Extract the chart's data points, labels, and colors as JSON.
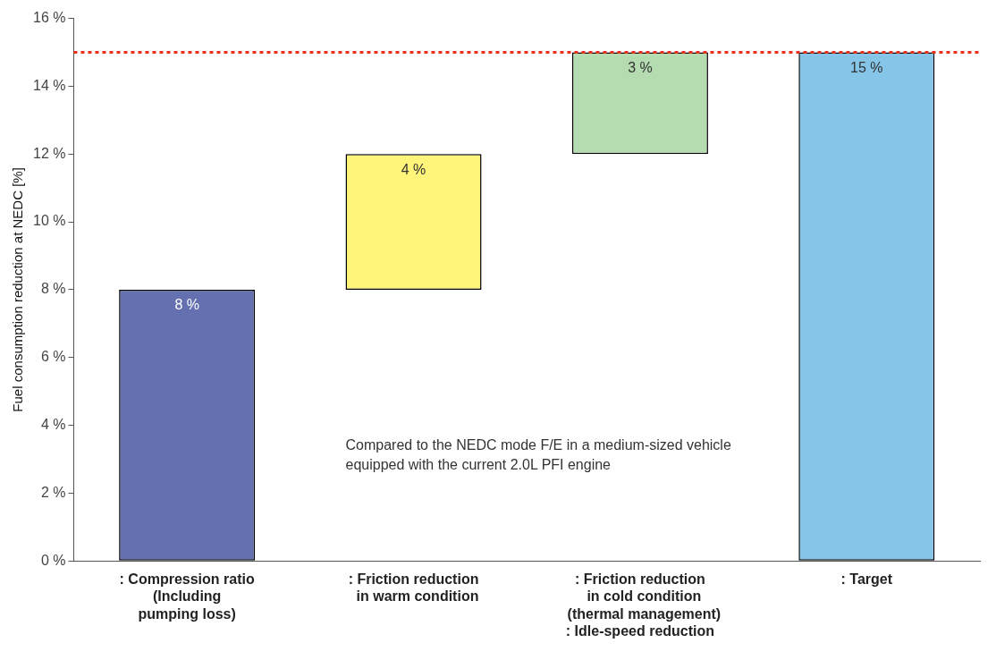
{
  "chart_data": {
    "type": "bar",
    "ylabel": "Fuel consumption reduction at NEDC [%]",
    "categories": [
      ": Compression ratio\n(Including\npumping loss)",
      ": Friction reduction\n  in warm condition",
      ": Friction reduction\n  in cold condition\n  (thermal management)\n: Idle-speed reduction",
      ": Target"
    ],
    "values": [
      8,
      4,
      3,
      15
    ],
    "base": [
      0,
      8,
      12,
      0
    ],
    "colors": [
      "#6470b0",
      "#fff57a",
      "#b5dbb0",
      "#85c5e8"
    ],
    "value_labels": [
      "8 %",
      "4 %",
      "3 %",
      "15 %"
    ],
    "ylim": [
      0,
      16
    ],
    "yticks": [
      {
        "value": 0,
        "label": "0 %"
      },
      {
        "value": 2,
        "label": "2 %"
      },
      {
        "value": 4,
        "label": "4 %"
      },
      {
        "value": 6,
        "label": "6 %"
      },
      {
        "value": 8,
        "label": "8 %"
      },
      {
        "value": 10,
        "label": "10 %"
      },
      {
        "value": 12,
        "label": "12 %"
      },
      {
        "value": 14,
        "label": "14 %"
      },
      {
        "value": 16,
        "label": "16 %"
      }
    ],
    "ref_lines": [
      {
        "axis": "y",
        "value": 15,
        "color": "#e8301c",
        "line_style": "dotted"
      }
    ],
    "annotations": [
      "Compared to the NEDC mode F/E in a medium-sized vehicle\nequipped with the current 2.0L PFI engine"
    ],
    "grid": false,
    "legend": false
  }
}
